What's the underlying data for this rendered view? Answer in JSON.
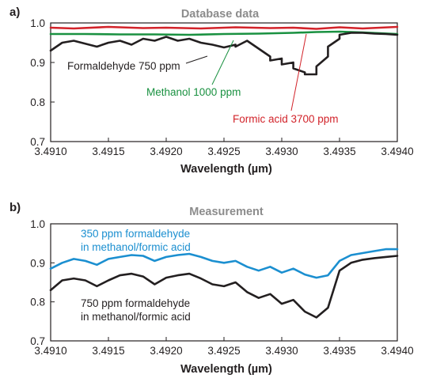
{
  "chart_data": [
    {
      "type": "line",
      "panel_label": "a)",
      "title": "Database data",
      "xlabel": "Wavelength (µm)",
      "ylabel": "",
      "xlim": [
        3.491,
        3.494
      ],
      "ylim": [
        0.7,
        1.0
      ],
      "xticks": [
        "3.4910",
        "3.4915",
        "3.4920",
        "3.4925",
        "3.4930",
        "3.4935",
        "3.4940"
      ],
      "yticks": [
        "0.7",
        "0.8",
        "0.9",
        "1.0"
      ],
      "grid": false,
      "series": [
        {
          "name": "Formic acid 3700 ppm",
          "color": "#d2232a",
          "x": [
            3.491,
            3.4912,
            3.4915,
            3.4918,
            3.492,
            3.4923,
            3.4926,
            3.4929,
            3.4931,
            3.4933,
            3.4935,
            3.4937,
            3.494
          ],
          "y": [
            0.988,
            0.986,
            0.99,
            0.987,
            0.988,
            0.986,
            0.989,
            0.987,
            0.988,
            0.985,
            0.989,
            0.986,
            0.99
          ]
        },
        {
          "name": "Methanol 1000 ppm",
          "color": "#1a9141",
          "x": [
            3.491,
            3.4913,
            3.4916,
            3.4919,
            3.4922,
            3.4925,
            3.4928,
            3.4931,
            3.4933,
            3.4935,
            3.4937,
            3.494
          ],
          "y": [
            0.972,
            0.972,
            0.971,
            0.971,
            0.97,
            0.972,
            0.973,
            0.975,
            0.977,
            0.978,
            0.976,
            0.972
          ]
        },
        {
          "name": "Formaldehyde 750 ppm",
          "color": "#231f20",
          "x": [
            3.491,
            3.4911,
            3.4912,
            3.4914,
            3.4915,
            3.4916,
            3.4917,
            3.4918,
            3.4919,
            3.492,
            3.4921,
            3.4922,
            3.4923,
            3.4924,
            3.4925,
            3.4926,
            3.4926,
            3.4927,
            3.4928,
            3.4929,
            3.4929,
            3.493,
            3.493,
            3.4931,
            3.4931,
            3.4932,
            3.4932,
            3.4933,
            3.4933,
            3.4934,
            3.4934,
            3.4935,
            3.4935,
            3.4936,
            3.4937,
            3.4938,
            3.4939,
            3.494
          ],
          "y": [
            0.93,
            0.95,
            0.955,
            0.94,
            0.95,
            0.955,
            0.945,
            0.96,
            0.955,
            0.965,
            0.955,
            0.96,
            0.95,
            0.945,
            0.938,
            0.945,
            0.94,
            0.955,
            0.935,
            0.915,
            0.905,
            0.91,
            0.895,
            0.9,
            0.885,
            0.875,
            0.87,
            0.87,
            0.89,
            0.915,
            0.94,
            0.96,
            0.97,
            0.975,
            0.975,
            0.973,
            0.972,
            0.97
          ]
        }
      ],
      "annotations": [
        {
          "text": "Formaldehyde 750 ppm",
          "color": "#231f20"
        },
        {
          "text": "Methanol 1000 ppm",
          "color": "#1a9141"
        },
        {
          "text": "Formic acid 3700 ppm",
          "color": "#d2232a"
        }
      ]
    },
    {
      "type": "line",
      "panel_label": "b)",
      "title": "Measurement",
      "xlabel": "Wavelength (µm)",
      "ylabel": "",
      "xlim": [
        3.491,
        3.494
      ],
      "ylim": [
        0.7,
        1.0
      ],
      "xticks": [
        "3.4910",
        "3.4915",
        "3.4920",
        "3.4925",
        "3.4930",
        "3.4935",
        "3.4940"
      ],
      "yticks": [
        "0.7",
        "0.8",
        "0.9",
        "1.0"
      ],
      "grid": false,
      "series": [
        {
          "name": "350 ppm formaldehyde in methanol/formic acid",
          "color": "#1b8fd0",
          "x": [
            3.491,
            3.4911,
            3.4912,
            3.4913,
            3.4914,
            3.4915,
            3.4916,
            3.4917,
            3.4918,
            3.4919,
            3.492,
            3.4921,
            3.4922,
            3.4923,
            3.4924,
            3.4925,
            3.4926,
            3.4927,
            3.4928,
            3.4929,
            3.493,
            3.4931,
            3.4932,
            3.4933,
            3.4934,
            3.4935,
            3.4936,
            3.4937,
            3.4938,
            3.4939,
            3.494
          ],
          "y": [
            0.885,
            0.9,
            0.91,
            0.905,
            0.895,
            0.91,
            0.915,
            0.92,
            0.918,
            0.905,
            0.915,
            0.92,
            0.923,
            0.915,
            0.905,
            0.9,
            0.905,
            0.89,
            0.88,
            0.89,
            0.875,
            0.885,
            0.87,
            0.862,
            0.868,
            0.905,
            0.92,
            0.925,
            0.93,
            0.935,
            0.935
          ]
        },
        {
          "name": "750 ppm formaldehyde in methanol/formic acid",
          "color": "#231f20",
          "x": [
            3.491,
            3.4911,
            3.4912,
            3.4913,
            3.4914,
            3.4915,
            3.4916,
            3.4917,
            3.4918,
            3.4919,
            3.492,
            3.4921,
            3.4922,
            3.4923,
            3.4924,
            3.4925,
            3.4926,
            3.4927,
            3.4928,
            3.4929,
            3.493,
            3.4931,
            3.4932,
            3.4933,
            3.4934,
            3.4935,
            3.4936,
            3.4937,
            3.4938,
            3.4939,
            3.494
          ],
          "y": [
            0.83,
            0.855,
            0.86,
            0.855,
            0.84,
            0.855,
            0.868,
            0.872,
            0.865,
            0.845,
            0.862,
            0.868,
            0.872,
            0.86,
            0.845,
            0.84,
            0.85,
            0.825,
            0.81,
            0.82,
            0.795,
            0.805,
            0.775,
            0.76,
            0.785,
            0.88,
            0.9,
            0.908,
            0.912,
            0.915,
            0.918
          ]
        }
      ],
      "annotations": [
        {
          "text_lines": [
            "350 ppm formaldehyde",
            "in methanol/formic acid"
          ],
          "color": "#1b8fd0"
        },
        {
          "text_lines": [
            "750 ppm formaldehyde",
            "in methanol/formic acid"
          ],
          "color": "#231f20"
        }
      ]
    }
  ]
}
